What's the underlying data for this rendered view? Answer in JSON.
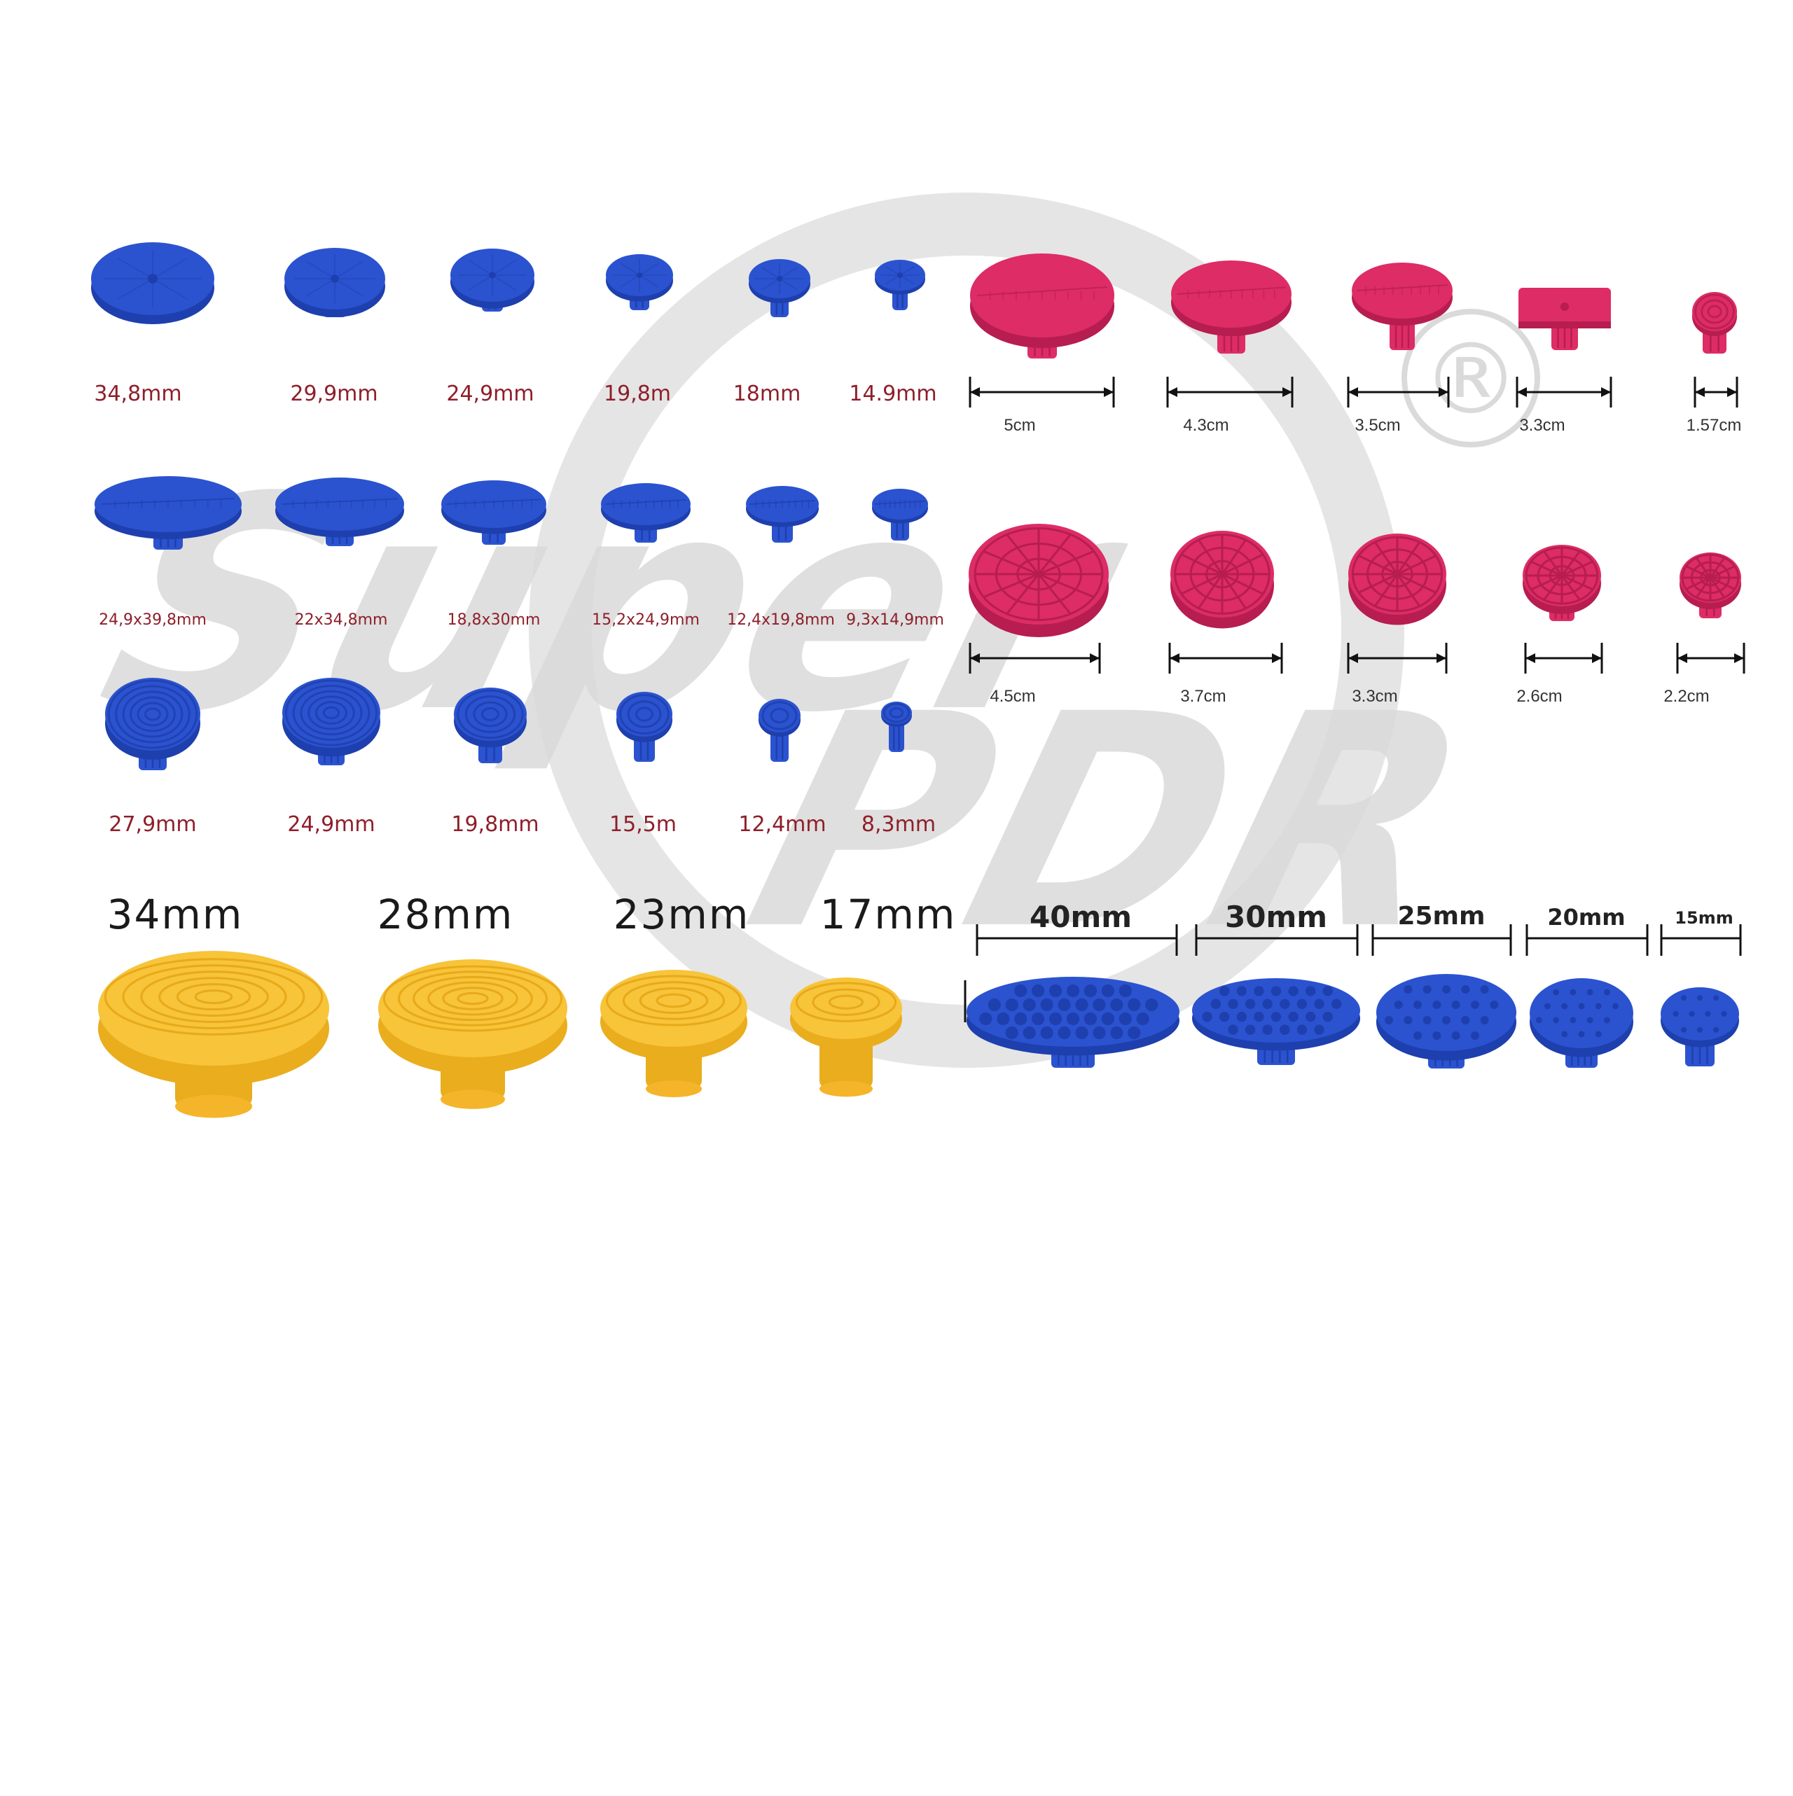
{
  "colors": {
    "background": "#ffffff",
    "blue": "#2b53cf",
    "blue_dark": "#1e3fae",
    "pink": "#dd2c66",
    "pink_dark": "#b71d50",
    "yellow": "#f7c43a",
    "yellow_dark": "#e9ad1d",
    "watermark": "#dadada",
    "label_red": "#8e1f2a"
  },
  "watermark": {
    "brand_line1": "Super",
    "brand_line2": "PDR",
    "registered_mark": "®"
  },
  "blue_flat_row": {
    "labels": [
      "34,8mm",
      "29,9mm",
      "24,9mm",
      "19,8m",
      "18mm",
      "14.9mm"
    ]
  },
  "blue_oval_row": {
    "labels": [
      "24,9x39,8mm",
      "22x34,8mm",
      "18,8x30mm",
      "15,2x24,9mm",
      "12,4x19,8mm",
      "9,3x14,9mm"
    ]
  },
  "blue_ringed_row": {
    "labels": [
      "27,9mm",
      "24,9mm",
      "19,8mm",
      "15,5m",
      "12,4mm",
      "8,3mm"
    ]
  },
  "pink_top_row": {
    "labels": [
      "5cm",
      "4.3cm",
      "3.5cm",
      "3.3cm",
      "1.57cm"
    ]
  },
  "pink_round_row": {
    "labels": [
      "4.5cm",
      "3.7cm",
      "3.3cm",
      "2.6cm",
      "2.2cm"
    ]
  },
  "yellow_row": {
    "labels": [
      "34mm",
      "28mm",
      "23mm",
      "17mm"
    ]
  },
  "blue_dimpled_row": {
    "labels": [
      "40mm",
      "30mm",
      "25mm",
      "20mm",
      "15mm"
    ]
  }
}
